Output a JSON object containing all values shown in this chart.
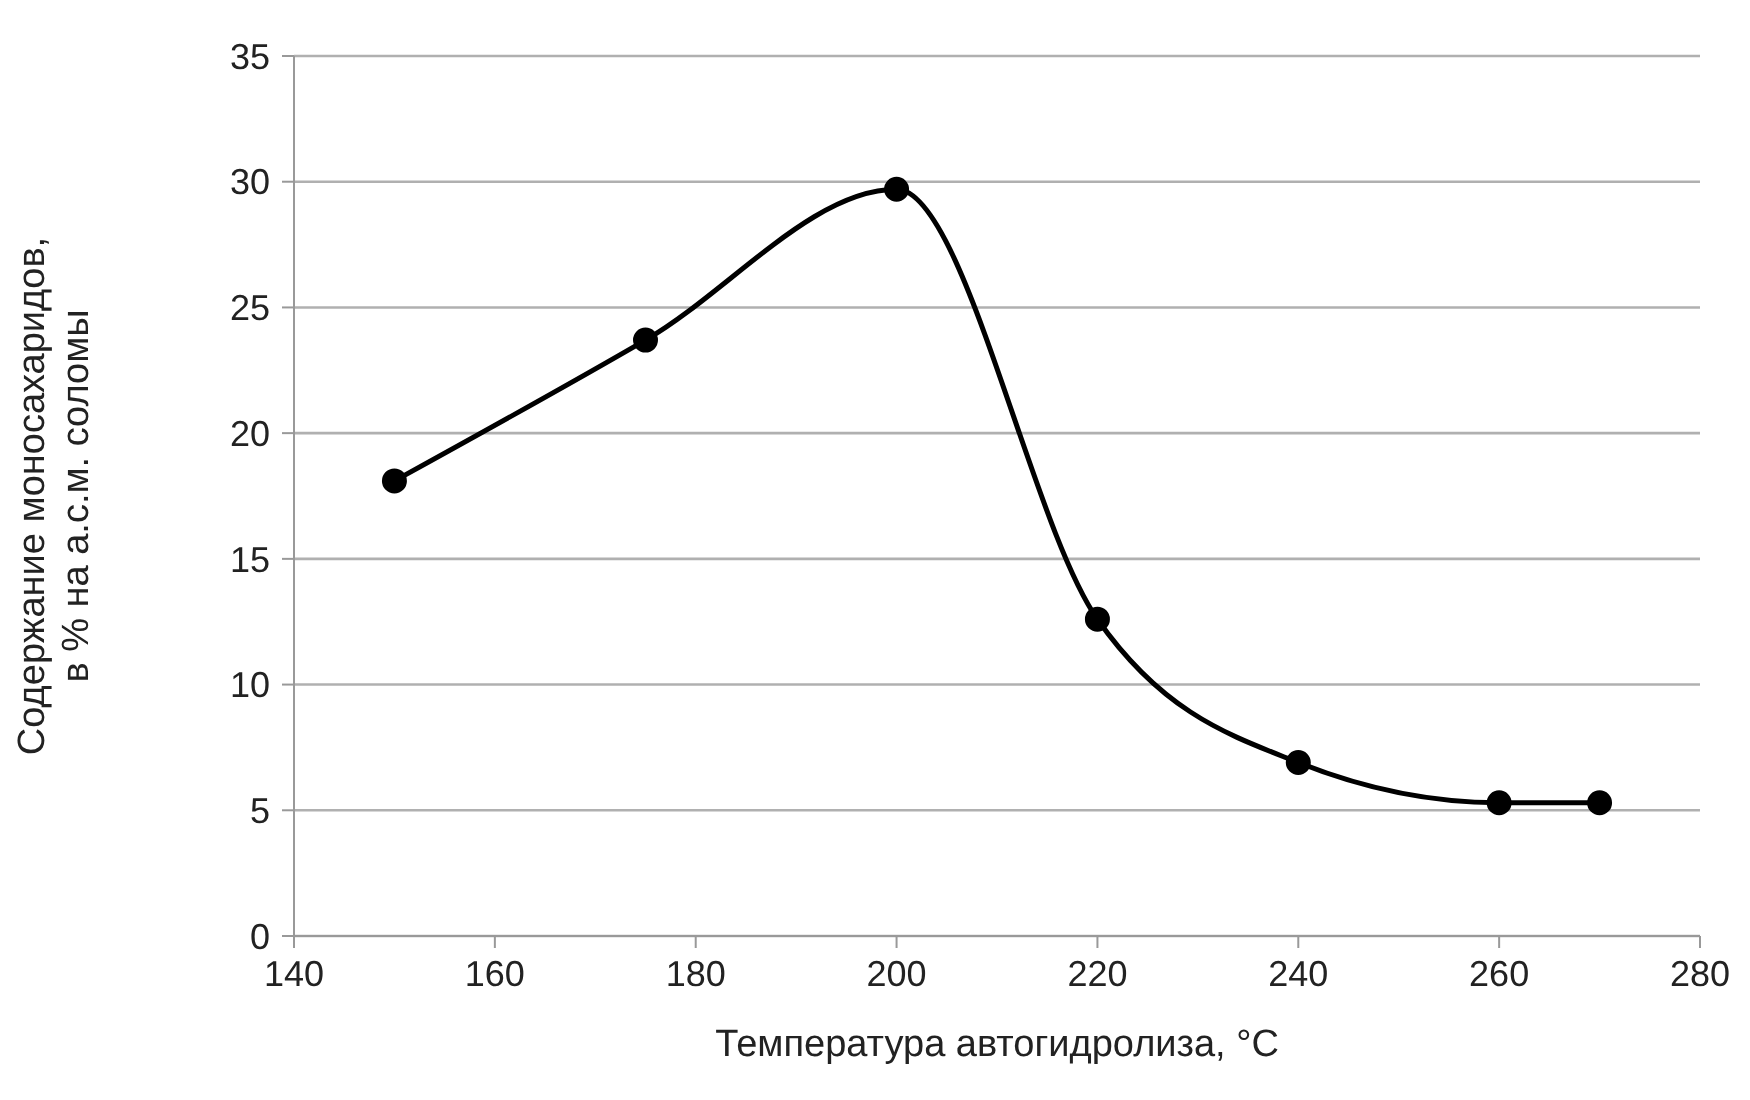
{
  "chart_data": {
    "type": "line",
    "xlabel": "Температура автогидролиза, °C",
    "ylabel": "Содержание моносахаридов,\nв % на а.с.м. соломы",
    "x": [
      150,
      175,
      200,
      220,
      240,
      260,
      270
    ],
    "series": [
      {
        "color": "#000000",
        "values": [
          18.1,
          23.7,
          29.7,
          12.6,
          6.9,
          5.3,
          5.3
        ]
      }
    ],
    "xlim": [
      140,
      280
    ],
    "xticks": [
      140,
      160,
      180,
      200,
      220,
      240,
      260,
      280
    ],
    "ylim": [
      0,
      35
    ],
    "yticks": [
      0,
      5,
      10,
      15,
      20,
      25,
      30,
      35
    ],
    "grid": "y",
    "legend": false,
    "marker": "circle",
    "line_style": "solid"
  }
}
